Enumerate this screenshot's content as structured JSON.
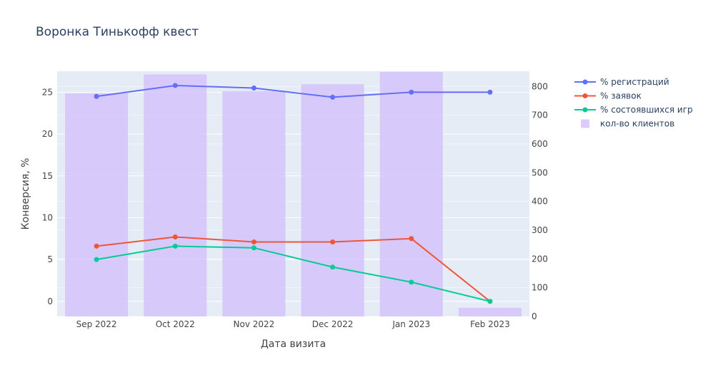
{
  "chart_data": {
    "type": "line",
    "title": "Воронка Тинькофф квест",
    "xlabel": "Дата визита",
    "ylabel": "Конверсия, %",
    "y2label": "",
    "categories": [
      "Sep 2022",
      "Oct 2022",
      "Nov 2022",
      "Dec 2022",
      "Jan 2023",
      "Feb 2023"
    ],
    "y_ticks": [
      "0",
      "5",
      "10",
      "15",
      "20",
      "25"
    ],
    "y2_ticks": [
      "0",
      "100",
      "200",
      "300",
      "400",
      "500",
      "600",
      "700",
      "800"
    ],
    "ylim": [
      -1.8,
      27.5
    ],
    "y2lim": [
      0,
      853
    ],
    "grid": true,
    "legend_position": "right",
    "bar_series": {
      "name": "кол-во клиентов",
      "axis": "y2",
      "color": "#d5c3fa",
      "values": [
        776,
        842,
        784,
        808,
        851,
        30
      ]
    },
    "series": [
      {
        "name": "% регистраций",
        "color": "#636efa",
        "values": [
          24.5,
          25.8,
          25.5,
          24.4,
          25.0,
          25.0
        ]
      },
      {
        "name": "% заявок",
        "color": "#ef553b",
        "values": [
          6.6,
          7.7,
          7.1,
          7.1,
          7.5,
          0.0
        ]
      },
      {
        "name": "% состоявшихся игр",
        "color": "#00cc96",
        "values": [
          5.0,
          6.6,
          6.4,
          4.1,
          2.3,
          0.0
        ]
      }
    ],
    "legend": [
      {
        "name": "% регистраций",
        "kind": "line",
        "color": "#636efa"
      },
      {
        "name": "% заявок",
        "kind": "line",
        "color": "#ef553b"
      },
      {
        "name": "% состоявшихся игр",
        "kind": "line",
        "color": "#00cc96"
      },
      {
        "name": "кол-во клиентов",
        "kind": "bar",
        "color": "#d5c3fa"
      }
    ],
    "colors": {
      "plot_background": "#e5ecf6",
      "grid": "#ffffff",
      "text": "#2a3f5f",
      "tick_text": "#444444"
    }
  }
}
